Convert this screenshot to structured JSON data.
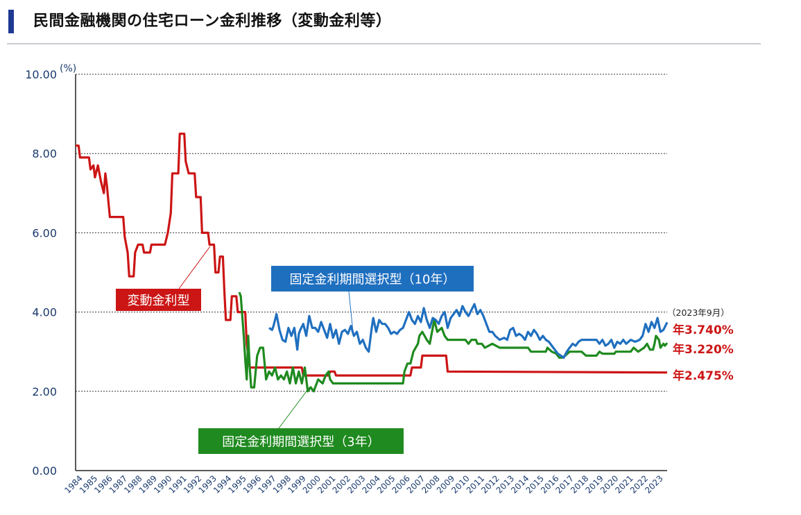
{
  "header": {
    "title": "民間金融機関の住宅ローン金利推移（変動金利等）"
  },
  "chart_data": {
    "type": "line",
    "ylabel": "(%)",
    "ylim": [
      0,
      10
    ],
    "yticks": [
      "0.00",
      "2.00",
      "4.00",
      "6.00",
      "8.00",
      "10.00"
    ],
    "xlim": [
      1984,
      2023.75
    ],
    "categories": [
      "1984",
      "1985",
      "1986",
      "1987",
      "1988",
      "1989",
      "1990",
      "1991",
      "1992",
      "1993",
      "1994",
      "1995",
      "1996",
      "1997",
      "1998",
      "1999",
      "2000",
      "2001",
      "2002",
      "2003",
      "2004",
      "2005",
      "2006",
      "2007",
      "2008",
      "2009",
      "2010",
      "2011",
      "2012",
      "2013",
      "2014",
      "2015",
      "2016",
      "2017",
      "2018",
      "2019",
      "2020",
      "2021",
      "2022",
      "2023"
    ],
    "grid": true,
    "as_of_note": "（2023年9月）",
    "series": [
      {
        "name": "変動金利型",
        "color": "#cc1515",
        "end_label": "年2.475%",
        "points": [
          [
            1984.0,
            8.2
          ],
          [
            1984.2,
            8.2
          ],
          [
            1984.3,
            7.9
          ],
          [
            1984.9,
            7.9
          ],
          [
            1985.0,
            7.6
          ],
          [
            1985.2,
            7.7
          ],
          [
            1985.3,
            7.4
          ],
          [
            1985.5,
            7.7
          ],
          [
            1985.7,
            7.3
          ],
          [
            1985.9,
            7.0
          ],
          [
            1986.0,
            7.5
          ],
          [
            1986.1,
            7.2
          ],
          [
            1986.3,
            6.4
          ],
          [
            1987.2,
            6.4
          ],
          [
            1987.3,
            5.9
          ],
          [
            1987.5,
            5.5
          ],
          [
            1987.6,
            4.9
          ],
          [
            1987.9,
            4.9
          ],
          [
            1988.0,
            5.5
          ],
          [
            1988.2,
            5.7
          ],
          [
            1988.5,
            5.7
          ],
          [
            1988.6,
            5.5
          ],
          [
            1989.0,
            5.5
          ],
          [
            1989.1,
            5.7
          ],
          [
            1990.0,
            5.7
          ],
          [
            1990.2,
            6.0
          ],
          [
            1990.4,
            6.5
          ],
          [
            1990.5,
            7.5
          ],
          [
            1990.9,
            7.5
          ],
          [
            1991.0,
            8.5
          ],
          [
            1991.3,
            8.5
          ],
          [
            1991.4,
            7.8
          ],
          [
            1991.6,
            7.5
          ],
          [
            1992.0,
            7.5
          ],
          [
            1992.1,
            6.9
          ],
          [
            1992.4,
            6.9
          ],
          [
            1992.5,
            6.0
          ],
          [
            1992.9,
            6.0
          ],
          [
            1993.0,
            5.7
          ],
          [
            1993.3,
            5.7
          ],
          [
            1993.4,
            5.0
          ],
          [
            1993.6,
            5.0
          ],
          [
            1993.7,
            5.4
          ],
          [
            1993.9,
            5.4
          ],
          [
            1994.0,
            4.5
          ],
          [
            1994.1,
            3.8
          ],
          [
            1994.4,
            3.8
          ],
          [
            1994.5,
            4.4
          ],
          [
            1994.8,
            4.4
          ],
          [
            1994.9,
            4.0
          ],
          [
            1995.4,
            4.0
          ],
          [
            1995.5,
            3.2
          ],
          [
            1995.7,
            2.6
          ],
          [
            1999.2,
            2.6
          ],
          [
            1999.3,
            2.4
          ],
          [
            2001.0,
            2.4
          ],
          [
            2001.1,
            2.5
          ],
          [
            2001.4,
            2.5
          ],
          [
            2001.5,
            2.4
          ],
          [
            2006.5,
            2.4
          ],
          [
            2006.6,
            2.6
          ],
          [
            2007.2,
            2.6
          ],
          [
            2007.3,
            2.9
          ],
          [
            2008.9,
            2.9
          ],
          [
            2009.0,
            2.5
          ],
          [
            2023.75,
            2.475
          ]
        ]
      },
      {
        "name": "固定金利期間選択型（3年）",
        "color": "#1f8a1f",
        "end_label": "年3.220%",
        "points": [
          [
            1995.0,
            4.5
          ],
          [
            1995.1,
            4.4
          ],
          [
            1995.3,
            3.4
          ],
          [
            1995.4,
            2.8
          ],
          [
            1995.5,
            2.3
          ],
          [
            1995.6,
            3.4
          ],
          [
            1995.7,
            2.6
          ],
          [
            1995.8,
            2.1
          ],
          [
            1996.0,
            2.1
          ],
          [
            1996.2,
            2.9
          ],
          [
            1996.4,
            3.1
          ],
          [
            1996.6,
            3.1
          ],
          [
            1996.8,
            2.3
          ],
          [
            1997.0,
            2.5
          ],
          [
            1997.2,
            2.4
          ],
          [
            1997.4,
            2.6
          ],
          [
            1997.6,
            2.3
          ],
          [
            1997.8,
            2.4
          ],
          [
            1998.0,
            2.3
          ],
          [
            1998.2,
            2.5
          ],
          [
            1998.4,
            2.2
          ],
          [
            1998.6,
            2.6
          ],
          [
            1998.8,
            2.2
          ],
          [
            1999.0,
            2.5
          ],
          [
            1999.2,
            2.2
          ],
          [
            1999.4,
            2.6
          ],
          [
            1999.6,
            2.0
          ],
          [
            1999.8,
            2.1
          ],
          [
            2000.0,
            2.0
          ],
          [
            2000.3,
            2.3
          ],
          [
            2000.6,
            2.2
          ],
          [
            2000.8,
            2.4
          ],
          [
            2001.0,
            2.5
          ],
          [
            2001.1,
            2.3
          ],
          [
            2001.3,
            2.2
          ],
          [
            2006.0,
            2.2
          ],
          [
            2006.1,
            2.5
          ],
          [
            2006.3,
            2.7
          ],
          [
            2006.5,
            2.7
          ],
          [
            2006.7,
            3.0
          ],
          [
            2007.0,
            3.2
          ],
          [
            2007.1,
            3.4
          ],
          [
            2007.3,
            3.5
          ],
          [
            2007.6,
            3.3
          ],
          [
            2007.8,
            3.2
          ],
          [
            2008.0,
            3.6
          ],
          [
            2008.1,
            3.8
          ],
          [
            2008.3,
            3.5
          ],
          [
            2008.6,
            3.6
          ],
          [
            2008.8,
            3.4
          ],
          [
            2009.0,
            3.3
          ],
          [
            2009.3,
            3.3
          ],
          [
            2009.6,
            3.3
          ],
          [
            2010.0,
            3.3
          ],
          [
            2010.2,
            3.3
          ],
          [
            2010.4,
            3.2
          ],
          [
            2010.6,
            3.3
          ],
          [
            2010.9,
            3.3
          ],
          [
            2011.0,
            3.2
          ],
          [
            2011.3,
            3.2
          ],
          [
            2011.5,
            3.1
          ],
          [
            2012.0,
            3.2
          ],
          [
            2012.5,
            3.1
          ],
          [
            2013.0,
            3.1
          ],
          [
            2013.6,
            3.1
          ],
          [
            2014.0,
            3.1
          ],
          [
            2014.4,
            3.1
          ],
          [
            2014.6,
            3.0
          ],
          [
            2015.6,
            3.0
          ],
          [
            2015.7,
            3.1
          ],
          [
            2016.0,
            3.0
          ],
          [
            2016.3,
            2.95
          ],
          [
            2016.5,
            2.85
          ],
          [
            2016.7,
            2.85
          ],
          [
            2016.9,
            2.9
          ],
          [
            2017.2,
            3.0
          ],
          [
            2017.6,
            3.0
          ],
          [
            2018.0,
            3.0
          ],
          [
            2018.3,
            2.9
          ],
          [
            2018.6,
            2.9
          ],
          [
            2019.0,
            2.9
          ],
          [
            2019.2,
            3.0
          ],
          [
            2019.4,
            2.95
          ],
          [
            2019.8,
            2.95
          ],
          [
            2020.2,
            2.95
          ],
          [
            2020.3,
            3.0
          ],
          [
            2020.8,
            3.0
          ],
          [
            2021.3,
            3.0
          ],
          [
            2021.5,
            3.1
          ],
          [
            2021.8,
            3.0
          ],
          [
            2022.2,
            3.1
          ],
          [
            2022.4,
            3.2
          ],
          [
            2022.6,
            3.05
          ],
          [
            2022.8,
            3.05
          ],
          [
            2022.9,
            3.2
          ],
          [
            2023.0,
            3.4
          ],
          [
            2023.2,
            3.3
          ],
          [
            2023.3,
            3.1
          ],
          [
            2023.5,
            3.2
          ],
          [
            2023.6,
            3.15
          ],
          [
            2023.75,
            3.22
          ]
        ]
      },
      {
        "name": "固定金利期間選択型（10年）",
        "color": "#1f6fbf",
        "end_label": "年3.740%",
        "points": [
          [
            1997.0,
            3.6
          ],
          [
            1997.2,
            3.55
          ],
          [
            1997.3,
            3.65
          ],
          [
            1997.5,
            3.95
          ],
          [
            1997.7,
            3.55
          ],
          [
            1997.9,
            3.3
          ],
          [
            1998.1,
            3.25
          ],
          [
            1998.3,
            3.6
          ],
          [
            1998.5,
            3.4
          ],
          [
            1998.7,
            3.6
          ],
          [
            1998.9,
            3.05
          ],
          [
            1999.0,
            3.45
          ],
          [
            1999.1,
            3.55
          ],
          [
            1999.3,
            3.7
          ],
          [
            1999.5,
            3.4
          ],
          [
            1999.7,
            3.9
          ],
          [
            1999.9,
            3.6
          ],
          [
            2000.1,
            3.6
          ],
          [
            2000.3,
            3.5
          ],
          [
            2000.5,
            3.75
          ],
          [
            2000.7,
            3.55
          ],
          [
            2000.9,
            3.35
          ],
          [
            2001.1,
            3.7
          ],
          [
            2001.3,
            3.35
          ],
          [
            2001.5,
            3.55
          ],
          [
            2001.7,
            3.2
          ],
          [
            2001.9,
            3.5
          ],
          [
            2002.1,
            3.55
          ],
          [
            2002.3,
            3.45
          ],
          [
            2002.5,
            3.65
          ],
          [
            2002.7,
            3.4
          ],
          [
            2002.9,
            3.5
          ],
          [
            2003.1,
            3.2
          ],
          [
            2003.3,
            3.3
          ],
          [
            2003.5,
            3.1
          ],
          [
            2003.7,
            3.0
          ],
          [
            2003.9,
            3.6
          ],
          [
            2004.0,
            3.85
          ],
          [
            2004.2,
            3.5
          ],
          [
            2004.4,
            3.8
          ],
          [
            2004.6,
            3.7
          ],
          [
            2004.8,
            3.7
          ],
          [
            2005.0,
            3.6
          ],
          [
            2005.2,
            3.45
          ],
          [
            2005.4,
            3.5
          ],
          [
            2005.6,
            3.45
          ],
          [
            2005.8,
            3.55
          ],
          [
            2006.0,
            3.6
          ],
          [
            2006.2,
            3.8
          ],
          [
            2006.4,
            4.0
          ],
          [
            2006.6,
            3.8
          ],
          [
            2006.8,
            3.7
          ],
          [
            2007.0,
            3.9
          ],
          [
            2007.2,
            3.75
          ],
          [
            2007.4,
            4.1
          ],
          [
            2007.6,
            3.8
          ],
          [
            2007.8,
            3.6
          ],
          [
            2008.0,
            3.85
          ],
          [
            2008.2,
            3.8
          ],
          [
            2008.4,
            3.7
          ],
          [
            2008.6,
            3.9
          ],
          [
            2008.8,
            4.0
          ],
          [
            2009.0,
            3.6
          ],
          [
            2009.2,
            3.85
          ],
          [
            2009.4,
            3.95
          ],
          [
            2009.6,
            4.05
          ],
          [
            2009.8,
            3.9
          ],
          [
            2010.0,
            4.15
          ],
          [
            2010.2,
            4.0
          ],
          [
            2010.4,
            3.9
          ],
          [
            2010.6,
            4.05
          ],
          [
            2010.8,
            4.2
          ],
          [
            2011.0,
            3.95
          ],
          [
            2011.2,
            4.05
          ],
          [
            2011.4,
            3.9
          ],
          [
            2011.6,
            3.7
          ],
          [
            2011.8,
            3.5
          ],
          [
            2012.0,
            3.5
          ],
          [
            2012.2,
            3.4
          ],
          [
            2012.5,
            3.3
          ],
          [
            2012.8,
            3.35
          ],
          [
            2013.0,
            3.3
          ],
          [
            2013.2,
            3.55
          ],
          [
            2013.4,
            3.6
          ],
          [
            2013.6,
            3.4
          ],
          [
            2013.8,
            3.45
          ],
          [
            2014.0,
            3.4
          ],
          [
            2014.2,
            3.3
          ],
          [
            2014.4,
            3.5
          ],
          [
            2014.6,
            3.4
          ],
          [
            2014.8,
            3.55
          ],
          [
            2015.0,
            3.45
          ],
          [
            2015.2,
            3.3
          ],
          [
            2015.4,
            3.4
          ],
          [
            2015.6,
            3.3
          ],
          [
            2015.8,
            3.25
          ],
          [
            2016.0,
            3.15
          ],
          [
            2016.2,
            3.05
          ],
          [
            2016.4,
            2.95
          ],
          [
            2016.6,
            2.9
          ],
          [
            2016.8,
            2.85
          ],
          [
            2017.0,
            3.0
          ],
          [
            2017.2,
            3.1
          ],
          [
            2017.4,
            3.2
          ],
          [
            2017.6,
            3.15
          ],
          [
            2017.8,
            3.25
          ],
          [
            2018.0,
            3.3
          ],
          [
            2018.4,
            3.3
          ],
          [
            2018.8,
            3.3
          ],
          [
            2019.0,
            3.3
          ],
          [
            2019.2,
            3.2
          ],
          [
            2019.4,
            3.3
          ],
          [
            2019.6,
            3.15
          ],
          [
            2019.8,
            3.2
          ],
          [
            2020.0,
            3.3
          ],
          [
            2020.2,
            3.1
          ],
          [
            2020.4,
            3.25
          ],
          [
            2020.6,
            3.2
          ],
          [
            2020.8,
            3.3
          ],
          [
            2021.0,
            3.2
          ],
          [
            2021.3,
            3.3
          ],
          [
            2021.6,
            3.25
          ],
          [
            2021.9,
            3.3
          ],
          [
            2022.1,
            3.4
          ],
          [
            2022.3,
            3.7
          ],
          [
            2022.5,
            3.5
          ],
          [
            2022.7,
            3.75
          ],
          [
            2022.9,
            3.6
          ],
          [
            2023.1,
            3.85
          ],
          [
            2023.3,
            3.5
          ],
          [
            2023.5,
            3.55
          ],
          [
            2023.75,
            3.74
          ]
        ]
      }
    ]
  }
}
